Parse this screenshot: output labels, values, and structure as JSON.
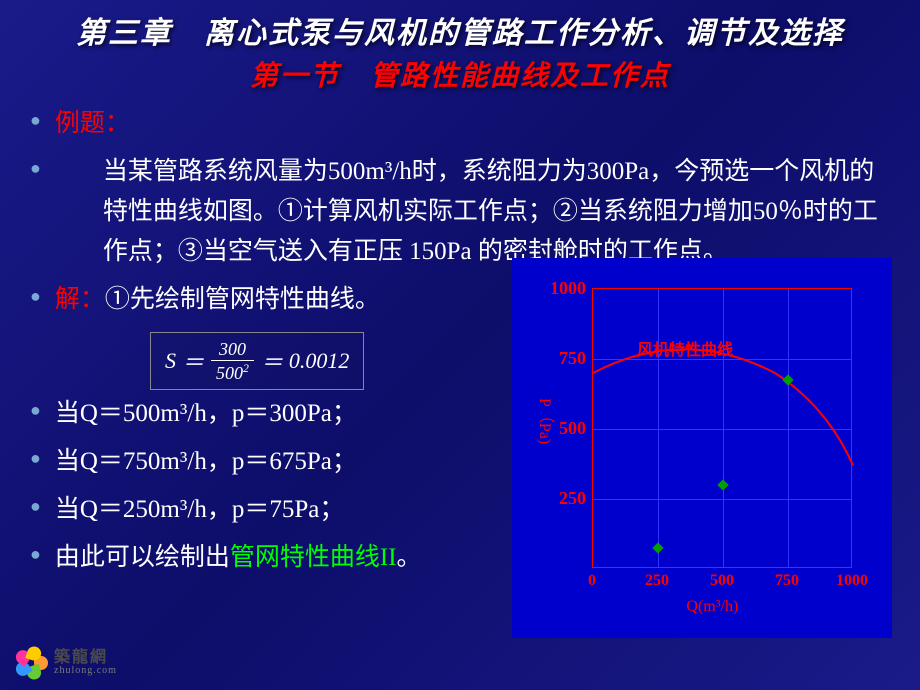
{
  "chapter_title": "第三章　离心式泵与风机的管路工作分析、调节及选择",
  "section_title": "第一节　管路性能曲线及工作点",
  "example_label": "例题：",
  "problem_text": "当某管路系统风量为500m³/h时，系统阻力为300Pa，今预选一个风机的特性曲线如图。①计算风机实际工作点；②当系统阻力增加50％时的工作点；③当空气送入有正压 150Pa 的密封舱时的工作点。",
  "solution_label": "解：",
  "solution_step1": "①先绘制管网特性曲线。",
  "formula": {
    "lhs": "S",
    "eq": "＝",
    "numerator": "300",
    "denominator_base": "500",
    "denominator_exp": "2",
    "result": "0.0012"
  },
  "data_lines": [
    "当Q＝500m³/h，p＝300Pa；",
    "当Q＝750m³/h，p＝675Pa；",
    "当Q＝250m³/h，p＝75Pa；"
  ],
  "conclusion_prefix": "由此可以绘制出",
  "conclusion_green": "管网特性曲线II",
  "conclusion_suffix": "。",
  "chart": {
    "type": "line",
    "background_color": "#0000cc",
    "grid_color": "#3333ff",
    "axis_color": "#ff0000",
    "text_color": "#ff0000",
    "curve_color": "#ff0000",
    "point_color": "#00a000",
    "xlim": [
      0,
      1000
    ],
    "ylim": [
      0,
      1000
    ],
    "xticks": [
      0,
      250,
      500,
      750,
      1000
    ],
    "yticks": [
      250,
      500,
      750,
      1000
    ],
    "xtick_labels": [
      "0",
      "250",
      "500",
      "750",
      "1000"
    ],
    "ytick_labels": [
      "250",
      "500",
      "750",
      "1000"
    ],
    "x_label": "Q(m³/h)",
    "y_label": "P（Pa)",
    "series_label": "风机特性曲线",
    "fan_curve": [
      {
        "x": 0,
        "y": 700
      },
      {
        "x": 250,
        "y": 780
      },
      {
        "x": 500,
        "y": 780
      },
      {
        "x": 750,
        "y": 680
      },
      {
        "x": 1000,
        "y": 370
      }
    ],
    "points": [
      {
        "x": 250,
        "y": 75
      },
      {
        "x": 500,
        "y": 300
      },
      {
        "x": 750,
        "y": 675
      }
    ]
  },
  "logo": {
    "cn": "築龍網",
    "en": "zhulong.com",
    "petal_colors": [
      "#ff9933",
      "#66cc33",
      "#3399ff",
      "#ff3399",
      "#ffcc00"
    ]
  }
}
